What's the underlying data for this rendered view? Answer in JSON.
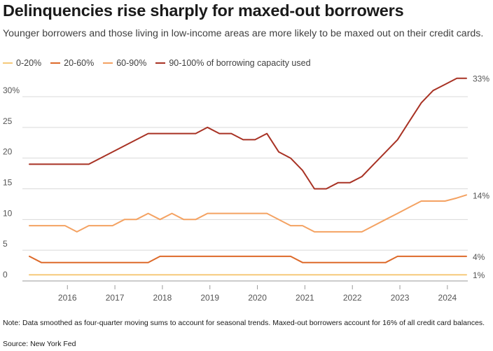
{
  "title": "Delinquencies rise sharply for maxed-out borrowers",
  "subtitle": "Younger borrowers and those living in low-income areas are more likely to be maxed out on their credit cards.",
  "note": "Note: Data smoothed as four-quarter moving sums to account for seasonal trends. Maxed-out borrowers account for 16% of all credit card balances.",
  "source": "Source: New York Fed",
  "chart_data": {
    "type": "line",
    "title": "Delinquencies rise sharply for maxed-out borrowers",
    "xlabel": "",
    "ylabel": "",
    "xlim": [
      2015.2,
      2024.4
    ],
    "ylim": [
      0,
      33
    ],
    "yticks": [
      0,
      5,
      10,
      15,
      20,
      25,
      30
    ],
    "ytick_labels": [
      "0",
      "5",
      "10",
      "15",
      "20",
      "25",
      "30%"
    ],
    "xticks": [
      2016,
      2017,
      2018,
      2019,
      2020,
      2021,
      2022,
      2023,
      2024
    ],
    "xtick_labels": [
      "2016",
      "2017",
      "2018",
      "2019",
      "2020",
      "2021",
      "2022",
      "2023",
      "2024"
    ],
    "grid": "horizontal",
    "legend": "top-left",
    "series": [
      {
        "name": "0-20%",
        "color": "#f5c97a",
        "end_label": "1%",
        "x": [
          2015.2,
          2024.4
        ],
        "y": [
          1,
          1
        ]
      },
      {
        "name": "20-60%",
        "color": "#dd6a2a",
        "end_label": "4%",
        "x": [
          2015.2,
          2015.45,
          2017.7,
          2017.95,
          2020.7,
          2020.95,
          2022.7,
          2022.95,
          2024.4
        ],
        "y": [
          4,
          3,
          3,
          4,
          4,
          3,
          3,
          4,
          4
        ]
      },
      {
        "name": "60-90%",
        "color": "#f4a262",
        "end_label": "14%",
        "x": [
          2015.2,
          2015.95,
          2016.2,
          2016.45,
          2016.95,
          2017.2,
          2017.45,
          2017.7,
          2017.95,
          2018.2,
          2018.45,
          2018.7,
          2018.95,
          2019.2,
          2019.45,
          2019.7,
          2019.95,
          2020.2,
          2020.7,
          2020.95,
          2021.2,
          2021.45,
          2021.7,
          2021.95,
          2022.2,
          2022.45,
          2022.7,
          2022.95,
          2023.2,
          2023.45,
          2023.7,
          2023.95,
          2024.2,
          2024.4
        ],
        "y": [
          9,
          9,
          8,
          9,
          9,
          10,
          10,
          11,
          10,
          11,
          10,
          10,
          11,
          11,
          11,
          11,
          11,
          11,
          9,
          9,
          8,
          8,
          8,
          8,
          8,
          9,
          10,
          11,
          12,
          13,
          13,
          13,
          13.5,
          14
        ]
      },
      {
        "name": "90-100% of borrowing capacity used",
        "color": "#a83224",
        "end_label": "33%",
        "x": [
          2015.2,
          2015.95,
          2016.45,
          2016.95,
          2017.45,
          2017.7,
          2017.95,
          2018.2,
          2018.45,
          2018.7,
          2018.95,
          2019.2,
          2019.45,
          2019.7,
          2019.95,
          2020.2,
          2020.45,
          2020.7,
          2020.95,
          2021.2,
          2021.45,
          2021.7,
          2021.95,
          2022.2,
          2022.45,
          2022.7,
          2022.95,
          2023.2,
          2023.45,
          2023.7,
          2023.95,
          2024.2,
          2024.4
        ],
        "y": [
          19,
          19,
          19,
          21,
          23,
          24,
          24,
          24,
          24,
          24,
          25,
          24,
          24,
          23,
          23,
          24,
          21,
          20,
          18,
          15,
          15,
          16,
          16,
          17,
          19,
          21,
          23,
          26,
          29,
          31,
          32,
          33,
          33
        ]
      }
    ]
  }
}
